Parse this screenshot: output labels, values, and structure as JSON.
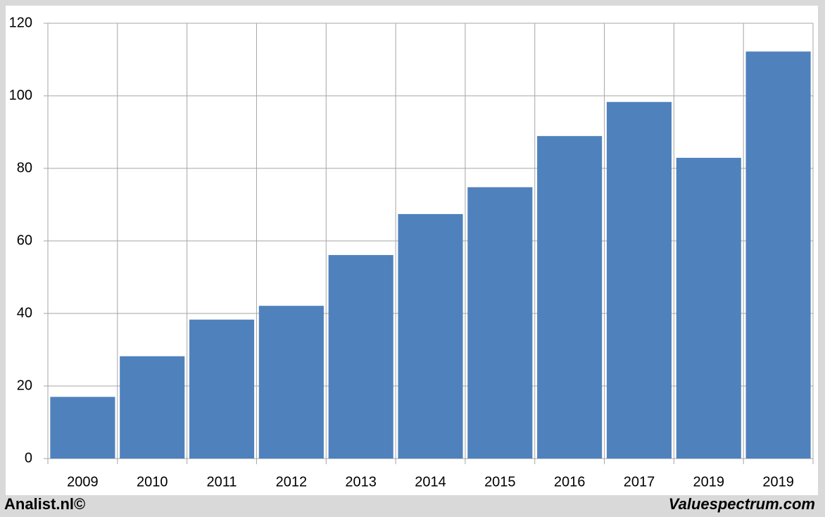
{
  "chart_data": {
    "type": "bar",
    "categories": [
      "2009",
      "2010",
      "2011",
      "2012",
      "2013",
      "2014",
      "2015",
      "2016",
      "2017",
      "2019",
      "2019"
    ],
    "values": [
      17,
      28.2,
      38.3,
      42.1,
      56.1,
      67.4,
      74.8,
      88.9,
      98.3,
      82.9,
      112.2
    ],
    "color": "#4f81bd",
    "ylim": [
      0,
      120
    ],
    "yticks": [
      0,
      20,
      40,
      60,
      80,
      100,
      120
    ],
    "grid": true,
    "footer_left": "Analist.nl©",
    "footer_right": "Valuespectrum.com"
  }
}
